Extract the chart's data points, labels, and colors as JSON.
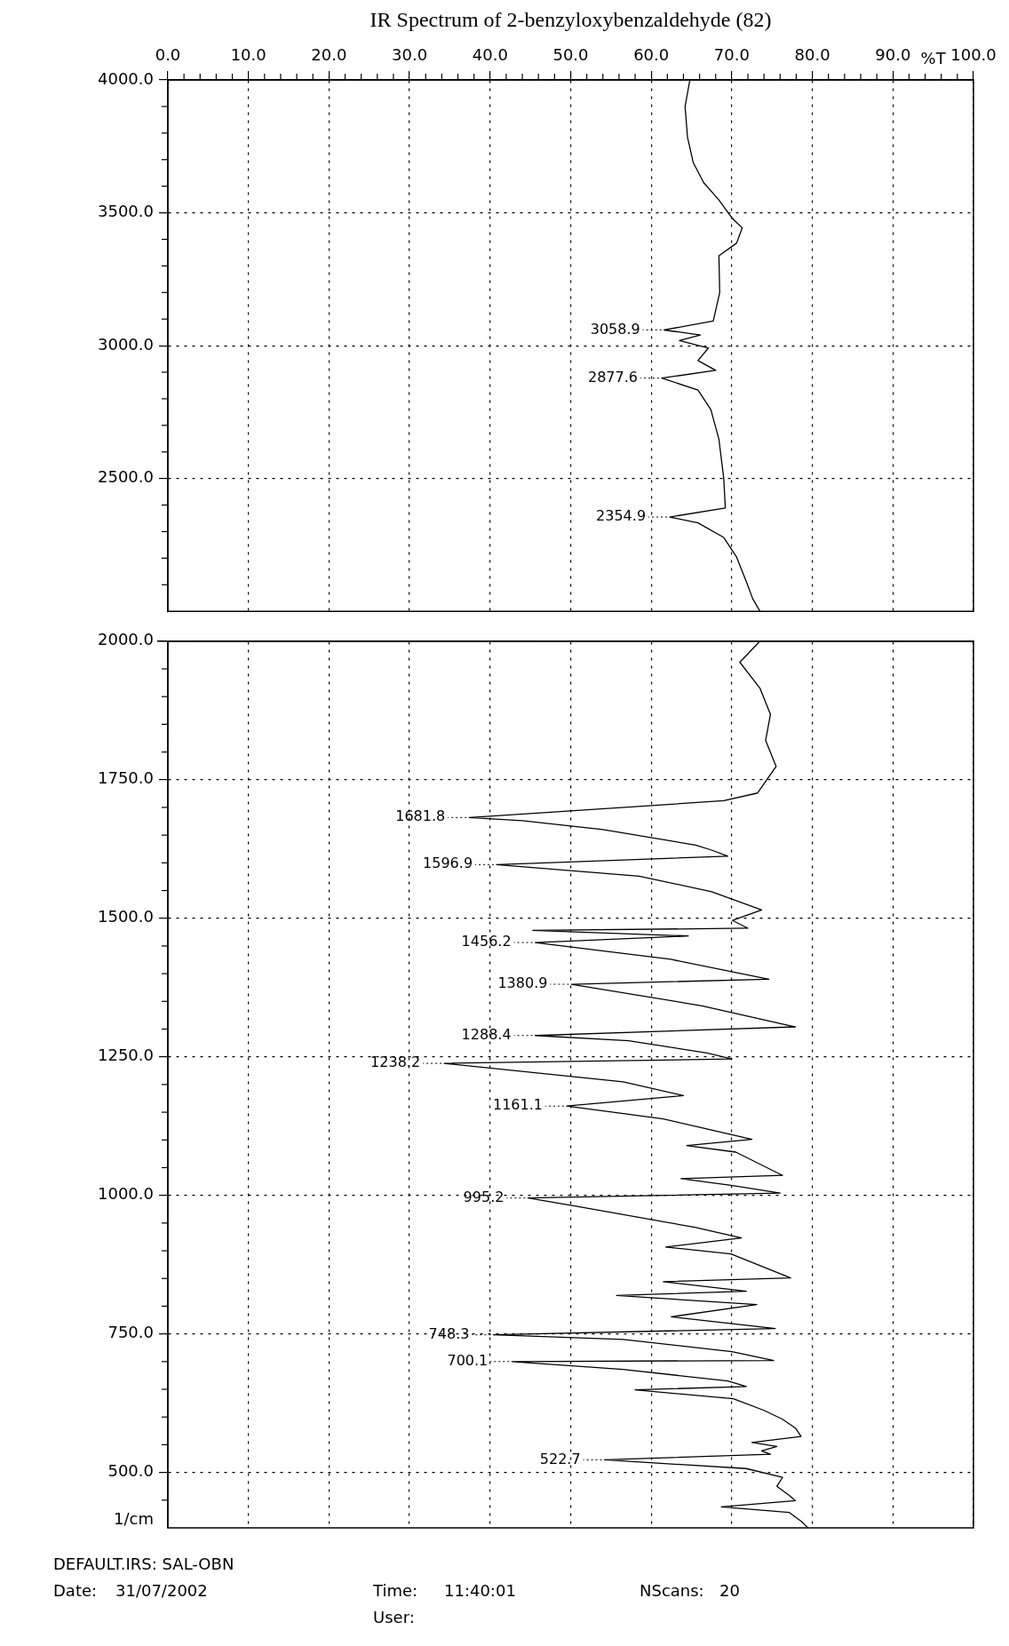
{
  "chart_data": [
    {
      "type": "line",
      "title": "IR Spectrum of 2-benzyloxybenzaldehyde (82)",
      "xlabel": "%T",
      "series": [
        {
          "color": "#000000",
          "x": [
            64.8,
            64.2,
            64.5,
            65.2,
            66.5,
            68.4,
            70,
            71.3,
            70.6,
            68.4,
            68.5,
            67.7,
            61.6,
            66.1,
            63.5,
            67.1,
            65.8,
            68,
            61.3,
            65.8,
            67.4,
            68.4,
            69,
            69.2,
            62.3,
            65.8,
            69,
            70.6,
            71.9,
            72.6,
            73.5
          ],
          "values": [
            4000,
            3900,
            3785,
            3690,
            3614,
            3548,
            3481,
            3443,
            3386,
            3338,
            3200,
            3093,
            3058.9,
            3040,
            3019,
            2991,
            2944,
            2907,
            2877.6,
            2833,
            2759,
            2648,
            2500,
            2389,
            2354.9,
            2333,
            2278,
            2204,
            2104,
            2047,
            2000
          ]
        }
      ],
      "ylim": [
        2000,
        4000
      ],
      "yticks": [
        {
          "value": 4000,
          "label": "4000.0"
        },
        {
          "value": 3900,
          "label": null
        },
        {
          "value": 3800,
          "label": null
        },
        {
          "value": 3700,
          "label": null
        },
        {
          "value": 3600,
          "label": null
        },
        {
          "value": 3500,
          "label": "3500.0"
        },
        {
          "value": 3400,
          "label": null
        },
        {
          "value": 3300,
          "label": null
        },
        {
          "value": 3200,
          "label": null
        },
        {
          "value": 3100,
          "label": null
        },
        {
          "value": 3000,
          "label": "3000.0"
        },
        {
          "value": 2900,
          "label": null
        },
        {
          "value": 2800,
          "label": null
        },
        {
          "value": 2700,
          "label": null
        },
        {
          "value": 2600,
          "label": null
        },
        {
          "value": 2500,
          "label": "2500.0"
        },
        {
          "value": 2400,
          "label": null
        },
        {
          "value": 2300,
          "label": null
        },
        {
          "value": 2200,
          "label": null
        },
        {
          "value": 2100,
          "label": null
        }
      ],
      "xlim": [
        0,
        100
      ],
      "xticks": [
        {
          "value": 0,
          "label": "0.0"
        },
        {
          "value": 2,
          "label": null
        },
        {
          "value": 4,
          "label": null
        },
        {
          "value": 6,
          "label": null
        },
        {
          "value": 8,
          "label": null
        },
        {
          "value": 10,
          "label": "10.0"
        },
        {
          "value": 12,
          "label": null
        },
        {
          "value": 14,
          "label": null
        },
        {
          "value": 16,
          "label": null
        },
        {
          "value": 18,
          "label": null
        },
        {
          "value": 20,
          "label": "20.0"
        },
        {
          "value": 22,
          "label": null
        },
        {
          "value": 24,
          "label": null
        },
        {
          "value": 26,
          "label": null
        },
        {
          "value": 28,
          "label": null
        },
        {
          "value": 30,
          "label": "30.0"
        },
        {
          "value": 32,
          "label": null
        },
        {
          "value": 34,
          "label": null
        },
        {
          "value": 36,
          "label": null
        },
        {
          "value": 38,
          "label": null
        },
        {
          "value": 40,
          "label": "40.0"
        },
        {
          "value": 42,
          "label": null
        },
        {
          "value": 44,
          "label": null
        },
        {
          "value": 46,
          "label": null
        },
        {
          "value": 48,
          "label": null
        },
        {
          "value": 50,
          "label": "50.0"
        },
        {
          "value": 52,
          "label": null
        },
        {
          "value": 54,
          "label": null
        },
        {
          "value": 56,
          "label": null
        },
        {
          "value": 58,
          "label": null
        },
        {
          "value": 60,
          "label": "60.0"
        },
        {
          "value": 62,
          "label": null
        },
        {
          "value": 64,
          "label": null
        },
        {
          "value": 66,
          "label": null
        },
        {
          "value": 68,
          "label": null
        },
        {
          "value": 70,
          "label": "70.0"
        },
        {
          "value": 72,
          "label": null
        },
        {
          "value": 74,
          "label": null
        },
        {
          "value": 76,
          "label": null
        },
        {
          "value": 78,
          "label": null
        },
        {
          "value": 80,
          "label": "80.0"
        },
        {
          "value": 82,
          "label": null
        },
        {
          "value": 84,
          "label": null
        },
        {
          "value": 86,
          "label": null
        },
        {
          "value": 88,
          "label": null
        },
        {
          "value": 90,
          "label": "90.0"
        },
        {
          "value": 92,
          "label": null
        },
        {
          "value": 94,
          "label": null
        },
        {
          "value": 96,
          "label": null
        },
        {
          "value": 98,
          "label": null
        },
        {
          "value": 100,
          "label": "100.0"
        }
      ],
      "annotations": [
        {
          "text": "3058.9",
          "x": 61.6,
          "y": 3058.9
        },
        {
          "text": "2877.6",
          "x": 61.3,
          "y": 2877.6
        },
        {
          "text": "2354.9",
          "x": 62.3,
          "y": 2354.9
        }
      ],
      "grid": true,
      "legend": false,
      "marker": "none",
      "line_style": "solid"
    },
    {
      "type": "line",
      "ylabel": "1/cm",
      "series": [
        {
          "color": "#000000",
          "x": [
            73.5,
            71,
            73.5,
            74.8,
            74.2,
            75.5,
            73.2,
            69,
            37.4,
            44,
            54,
            65.5,
            67.5,
            69.5,
            40.8,
            58.5,
            67.5,
            73.7,
            70.1,
            72,
            45.3,
            64.6,
            45.6,
            62.4,
            74.6,
            50.1,
            66.3,
            77.9,
            45.6,
            57.2,
            66.9,
            70,
            34.3,
            56.5,
            64,
            49.5,
            61.5,
            72.5,
            64.4,
            70.5,
            76.3,
            63.7,
            69.9,
            76,
            44.7,
            50.5,
            65.4,
            71.2,
            61.8,
            69.9,
            77.3,
            61.5,
            71.8,
            55.7,
            73.1,
            62.5,
            75.4,
            40.4,
            56.5,
            70,
            75.2,
            42.7,
            56.5,
            69.5,
            71.8,
            58,
            70.2,
            74,
            76.3,
            77.9,
            78.6,
            72.5,
            75.6,
            73.7,
            74.8,
            54.2,
            71.8,
            76.3,
            75.6,
            77.1,
            77.9,
            68.7,
            77.1,
            78.6,
            79.4
          ],
          "values": [
            2000,
            1962,
            1915,
            1868,
            1821,
            1774,
            1726,
            1712,
            1681.8,
            1676,
            1660,
            1632,
            1623,
            1612,
            1596.9,
            1576,
            1548,
            1515,
            1496,
            1482,
            1478,
            1468,
            1456.2,
            1426,
            1390,
            1380.9,
            1342,
            1304,
            1288.4,
            1279,
            1257,
            1246,
            1238.2,
            1205,
            1180,
            1161.1,
            1138,
            1101,
            1090,
            1078,
            1036,
            1030,
            1018,
            1004,
            995.2,
            980.8,
            942.3,
            923.1,
            906.8,
            894.3,
            851.1,
            844.3,
            827,
            819.3,
            803,
            780.9,
            759.8,
            748.3,
            740,
            718,
            702,
            700.1,
            686,
            665,
            655,
            649,
            633,
            612,
            596,
            580,
            565,
            554,
            547,
            539,
            533,
            522.7,
            507,
            491,
            475,
            459,
            449,
            438,
            428,
            412,
            401
          ]
        }
      ],
      "ylim": [
        400,
        2000
      ],
      "yticks": [
        {
          "value": 2000,
          "label": "2000.0"
        },
        {
          "value": 1950,
          "label": null
        },
        {
          "value": 1900,
          "label": null
        },
        {
          "value": 1850,
          "label": null
        },
        {
          "value": 1800,
          "label": null
        },
        {
          "value": 1750,
          "label": "1750.0"
        },
        {
          "value": 1700,
          "label": null
        },
        {
          "value": 1650,
          "label": null
        },
        {
          "value": 1600,
          "label": null
        },
        {
          "value": 1550,
          "label": null
        },
        {
          "value": 1500,
          "label": "1500.0"
        },
        {
          "value": 1450,
          "label": null
        },
        {
          "value": 1400,
          "label": null
        },
        {
          "value": 1350,
          "label": null
        },
        {
          "value": 1300,
          "label": null
        },
        {
          "value": 1250,
          "label": "1250.0"
        },
        {
          "value": 1200,
          "label": null
        },
        {
          "value": 1150,
          "label": null
        },
        {
          "value": 1100,
          "label": null
        },
        {
          "value": 1050,
          "label": null
        },
        {
          "value": 1000,
          "label": "1000.0"
        },
        {
          "value": 950,
          "label": null
        },
        {
          "value": 900,
          "label": null
        },
        {
          "value": 850,
          "label": null
        },
        {
          "value": 800,
          "label": null
        },
        {
          "value": 750,
          "label": "750.0"
        },
        {
          "value": 700,
          "label": null
        },
        {
          "value": 650,
          "label": null
        },
        {
          "value": 600,
          "label": null
        },
        {
          "value": 550,
          "label": null
        },
        {
          "value": 500,
          "label": "500.0"
        },
        {
          "value": 450,
          "label": null
        }
      ],
      "xlim": [
        0,
        100
      ],
      "xticks": [
        0,
        10,
        20,
        30,
        40,
        50,
        60,
        70,
        80,
        90,
        100
      ],
      "tick_labels": "y",
      "ref_lines": [
        {
          "axis": "y",
          "value": 2000,
          "line_style": "solid"
        }
      ],
      "annotations": [
        {
          "text": "1681.8",
          "x": 37.4,
          "y": 1681.8
        },
        {
          "text": "1596.9",
          "x": 40.8,
          "y": 1596.9
        },
        {
          "text": "1456.2",
          "x": 45.6,
          "y": 1456.2
        },
        {
          "text": "1380.9",
          "x": 50.1,
          "y": 1380.9
        },
        {
          "text": "1288.4",
          "x": 45.6,
          "y": 1288.4
        },
        {
          "text": "1238.2",
          "x": 34.3,
          "y": 1238.2
        },
        {
          "text": "1161.1",
          "x": 49.5,
          "y": 1161.1
        },
        {
          "text": "995.2",
          "x": 44.7,
          "y": 995.2
        },
        {
          "text": "748.3",
          "x": 40.4,
          "y": 748.3
        },
        {
          "text": "700.1",
          "x": 42.7,
          "y": 700.1
        },
        {
          "text": "522.7",
          "x": 54.2,
          "y": 522.7
        },
        "DEFAULT.IRS: SAL-OBN",
        "Date:",
        "31/07/2002",
        "Time:",
        "11:40:01",
        "NScans:",
        "20",
        "User:"
      ],
      "grid": true,
      "legend": false,
      "marker": "none",
      "line_style": "solid"
    }
  ]
}
